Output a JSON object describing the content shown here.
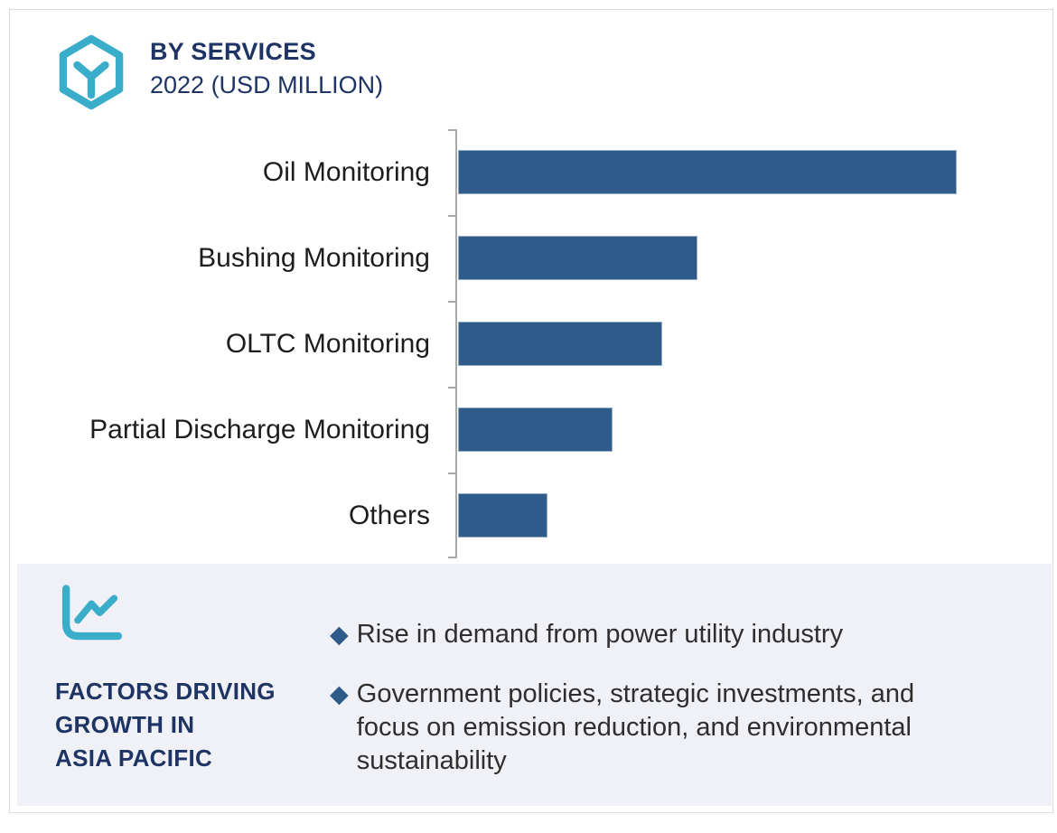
{
  "colors": {
    "teal": "#3aadcb",
    "navy": "#1e3465",
    "bar_blue": "#2e5b8a",
    "panel_bg": "#f0f1f6",
    "axis_gray": "#a9a9a9",
    "frame_border": "#d9dbe0",
    "label_text": "#1d1d1d",
    "bullet_text": "#2e2e2e"
  },
  "header": {
    "icon": "hexagon-y-logo-icon",
    "title": "BY SERVICES",
    "subtitle": "2022 (USD MILLION)"
  },
  "chart_data": {
    "type": "bar",
    "orientation": "horizontal",
    "title": "BY SERVICES",
    "subtitle": "2022 (USD MILLION)",
    "unit": "USD Million",
    "year": "2022",
    "categories": [
      "Oil Monitoring",
      "Bushing Monitoring",
      "OLTC Monitoring",
      "Partial Discharge Monitoring",
      "Others"
    ],
    "values_pct_of_max": [
      100,
      48,
      41,
      31,
      18
    ],
    "bar_color": "#2e5b8a",
    "gridlines": false,
    "value_axis_shown": false,
    "data_labels_shown": false,
    "legend": "none",
    "note": "No numeric axis or data labels are rendered; values are estimated relative to the longest bar (Oil Monitoring = 100)."
  },
  "factors_panel": {
    "icon": "line-chart-icon",
    "heading_lines": [
      "FACTORS DRIVING",
      "GROWTH IN",
      "ASIA PACIFIC"
    ],
    "bullet_marker_glyph": "◆",
    "bullets": [
      "Rise in demand from power utility industry",
      "Government policies, strategic investments, and focus on emission reduction, and environmental sustainability"
    ]
  }
}
